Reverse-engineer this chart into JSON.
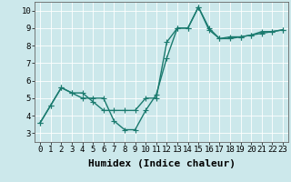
{
  "xlabel": "Humidex (Indice chaleur)",
  "bg_color": "#cce8eb",
  "grid_color": "#b0d4d8",
  "line_color": "#1a7a6e",
  "xlim": [
    -0.5,
    23.5
  ],
  "ylim": [
    2.5,
    10.5
  ],
  "xticks": [
    0,
    1,
    2,
    3,
    4,
    5,
    6,
    7,
    8,
    9,
    10,
    11,
    12,
    13,
    14,
    15,
    16,
    17,
    18,
    19,
    20,
    21,
    22,
    23
  ],
  "yticks": [
    3,
    4,
    5,
    6,
    7,
    8,
    9,
    10
  ],
  "line1_x": [
    0,
    1,
    2,
    3,
    4,
    5,
    6,
    7,
    8,
    9,
    10,
    11,
    12,
    13,
    14,
    15,
    16,
    17,
    18,
    19,
    20,
    21,
    22,
    23
  ],
  "line1_y": [
    3.6,
    4.6,
    5.6,
    5.3,
    5.3,
    4.8,
    4.3,
    4.3,
    4.3,
    4.3,
    5.0,
    5.0,
    8.2,
    9.0,
    9.0,
    10.2,
    8.9,
    8.4,
    8.4,
    8.5,
    8.6,
    8.7,
    8.8,
    8.9
  ],
  "line2_x": [
    0,
    1,
    2,
    3,
    4,
    5,
    6,
    7,
    8,
    9,
    10,
    11,
    12,
    13,
    14,
    15,
    16,
    17,
    18,
    19,
    20,
    21,
    22,
    23
  ],
  "line2_y": [
    3.6,
    4.6,
    5.6,
    5.3,
    5.0,
    5.0,
    5.0,
    3.7,
    3.2,
    3.2,
    4.3,
    5.2,
    7.3,
    9.0,
    9.0,
    10.2,
    9.0,
    8.4,
    8.5,
    8.5,
    8.6,
    8.8,
    8.8,
    8.9
  ],
  "marker": "+",
  "markersize": 4,
  "linewidth": 1.0,
  "xlabel_fontsize": 8,
  "tick_fontsize": 6.5
}
